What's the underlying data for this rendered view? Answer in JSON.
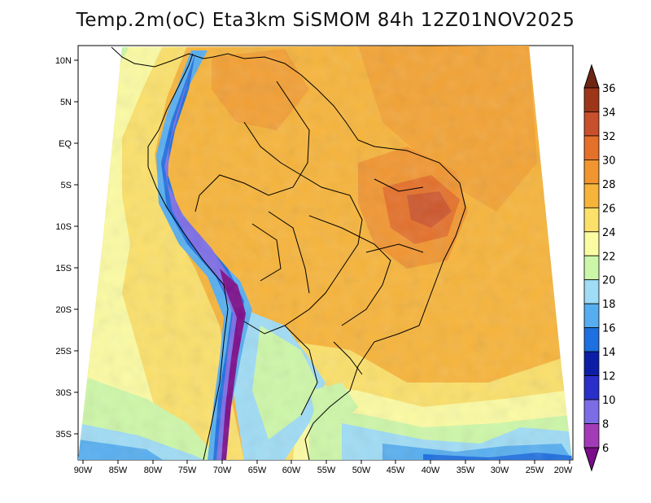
{
  "title": "Temp.2m(oC) Eta3km SiSMOM 84h 12Z01NOV2025",
  "map": {
    "lat_labels": [
      "10N",
      "5N",
      "EQ",
      "5S",
      "10S",
      "15S",
      "20S",
      "25S",
      "30S",
      "35S"
    ],
    "lon_labels": [
      "90W",
      "85W",
      "80W",
      "75W",
      "70W",
      "65W",
      "60W",
      "55W",
      "50W",
      "45W",
      "40W",
      "35W",
      "30W",
      "25W",
      "20W"
    ],
    "extent": {
      "lon_min": -91,
      "lon_max": -20,
      "lat_min": -38.5,
      "lat_max": 11.5
    }
  },
  "colorbar": {
    "labels": [
      "6",
      "8",
      "10",
      "12",
      "14",
      "16",
      "18",
      "20",
      "22",
      "24",
      "26",
      "28",
      "30",
      "32",
      "34",
      "36"
    ],
    "colors": [
      "#7b0c8a",
      "#a33bb8",
      "#7c6de6",
      "#2a2fc9",
      "#0d1ea6",
      "#1e6fe0",
      "#56aef0",
      "#9fdcf5",
      "#cdf7a8",
      "#fbfba2",
      "#fbe06a",
      "#f7b43a",
      "#f19530",
      "#e4702a",
      "#c8502c",
      "#9d3618",
      "#6e2512"
    ]
  }
}
